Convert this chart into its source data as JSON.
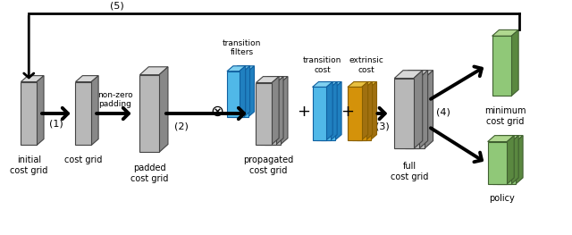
{
  "fig_width": 6.4,
  "fig_height": 2.63,
  "dpi": 100,
  "bg_color": "#ffffff",
  "gray_face": "#b8b8b8",
  "gray_edge": "#444444",
  "gray_side": "#888888",
  "gray_top": "#d8d8d8",
  "blue_face": "#50b8e8",
  "blue_edge": "#1060a0",
  "blue_side": "#2080c0",
  "blue_top": "#80d0f0",
  "yellow_face": "#d4920a",
  "yellow_edge": "#8a6000",
  "yellow_side": "#a07010",
  "yellow_top": "#e8c040",
  "green_face": "#90c878",
  "green_edge": "#406030",
  "green_side": "#5a8840",
  "green_top": "#b0d890",
  "labels": {
    "initial_cost_grid": "initial\ncost grid",
    "cost_grid": "cost grid",
    "padded_cost_grid": "padded\ncost grid",
    "propagated_cost_grid": "propagated\ncost grid",
    "full_cost_grid": "full\ncost grid",
    "minimum_cost_grid": "minimum\ncost grid",
    "policy": "policy",
    "transition_filters": "transition\nfilters",
    "transition_cost": "transition\ncost",
    "extrinsic_cost": "extrinsic\ncost",
    "non_zero_padding": "non-zero\npadding",
    "step1": "(1)",
    "step2": "(2)",
    "step3": "(3)",
    "step4": "(4)",
    "step5": "(5)"
  },
  "font_size": 7
}
